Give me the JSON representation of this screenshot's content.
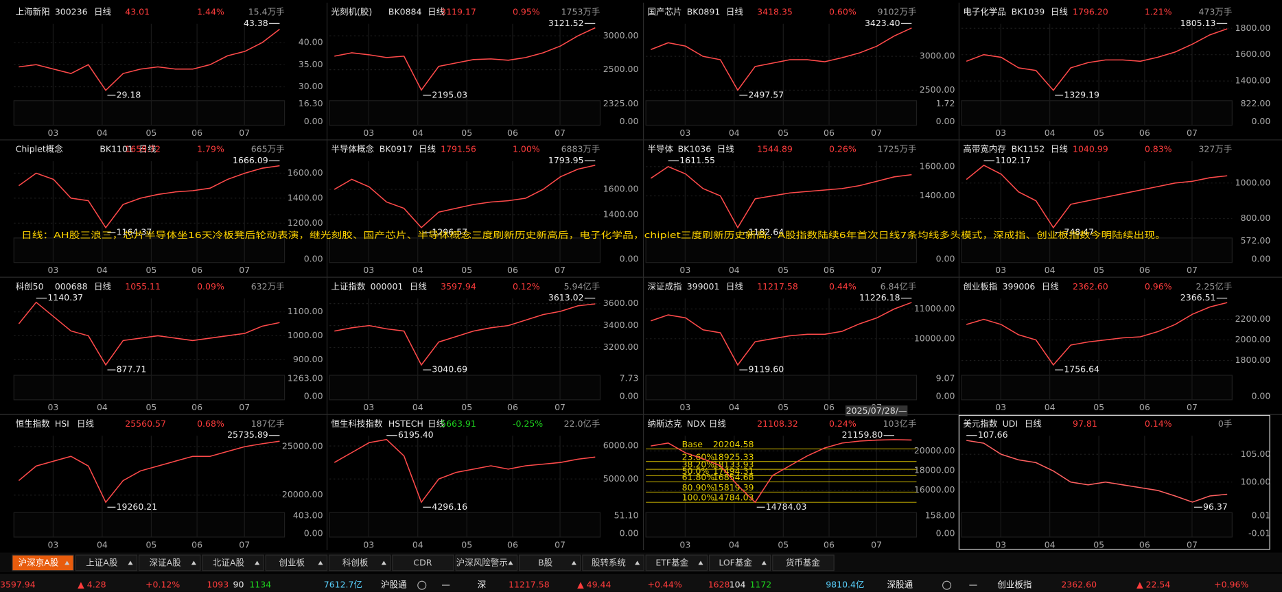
{
  "panels": [
    {
      "name": "上海新阳",
      "code": "300236",
      "period": "日线",
      "price": "43.01",
      "change": "1.44%",
      "volume_unit": "15.4万手",
      "yticks": [
        {
          "value": 40,
          "label": "40.00"
        },
        {
          "value": 35,
          "label": "35.00"
        },
        {
          "value": 30,
          "label": "30.00"
        }
      ],
      "vol_ticks": [
        "16.30",
        "0.00"
      ],
      "high": "43.38",
      "low": "29.18",
      "close": [
        34.5,
        35,
        34,
        33,
        35,
        29.2,
        33,
        34,
        34.5,
        34,
        34,
        35,
        37,
        38,
        40,
        43.01
      ]
    },
    {
      "name": "光刻机(胶)",
      "code": "BK0884",
      "period": "日线",
      "price": "3119.17",
      "change": "0.95%",
      "volume_unit": "1753万手",
      "yticks": [
        {
          "value": 3000,
          "label": "3000.00"
        },
        {
          "value": 2500,
          "label": "2500.00"
        }
      ],
      "vol_ticks": [
        "2325.00",
        "0.00"
      ],
      "high": "3121.52",
      "low": "2195.03",
      "close": [
        2700,
        2750,
        2720,
        2680,
        2700,
        2200,
        2550,
        2600,
        2650,
        2660,
        2640,
        2680,
        2750,
        2850,
        3000,
        3119.17
      ]
    },
    {
      "name": "国产芯片",
      "code": "BK0891",
      "period": "日线",
      "price": "3418.35",
      "change": "0.60%",
      "volume_unit": "9102万手",
      "yticks": [
        {
          "value": 3000,
          "label": "3000.00"
        },
        {
          "value": 2500,
          "label": "2500.00"
        }
      ],
      "vol_ticks": [
        "1.72",
        "0.00"
      ],
      "high": "3423.40",
      "low": "2497.57",
      "close": [
        3100,
        3200,
        3150,
        3000,
        2950,
        2500,
        2850,
        2900,
        2950,
        2950,
        2920,
        2980,
        3050,
        3150,
        3300,
        3418.35
      ]
    },
    {
      "name": "电子化学品",
      "code": "BK1039",
      "period": "日线",
      "price": "1796.20",
      "change": "1.21%",
      "volume_unit": "473万手",
      "yticks": [
        {
          "value": 1800,
          "label": "1800.00"
        },
        {
          "value": 1600,
          "label": "1600.00"
        },
        {
          "value": 1400,
          "label": "1400.00"
        }
      ],
      "vol_ticks": [
        "822.00",
        "0.00"
      ],
      "high": "1805.13",
      "low": "1329.19",
      "close": [
        1550,
        1600,
        1580,
        1500,
        1480,
        1330,
        1500,
        1540,
        1560,
        1560,
        1550,
        1580,
        1620,
        1680,
        1750,
        1796.2
      ]
    },
    {
      "name": "Chiplet概念",
      "code": "BK1101",
      "period": "日线",
      "price": "1659.72",
      "change": "1.79%",
      "volume_unit": "665万手",
      "yticks": [
        {
          "value": 1600,
          "label": "1600.00"
        },
        {
          "value": 1400,
          "label": "1400.00"
        },
        {
          "value": 1200,
          "label": "1200.00"
        }
      ],
      "vol_ticks": [
        "0.00"
      ],
      "high": "1666.09",
      "low": "1164.37",
      "close": [
        1500,
        1600,
        1550,
        1400,
        1380,
        1164,
        1350,
        1400,
        1430,
        1450,
        1460,
        1480,
        1550,
        1600,
        1640,
        1659.72
      ]
    },
    {
      "name": "半导体概念",
      "code": "BK0917",
      "period": "日线",
      "price": "1791.56",
      "change": "1.00%",
      "volume_unit": "6883万手",
      "yticks": [
        {
          "value": 1600,
          "label": "1600.00"
        },
        {
          "value": 1400,
          "label": "1400.00"
        }
      ],
      "vol_ticks": [
        "0.00"
      ],
      "high": "1793.95",
      "low": "1296.57",
      "close": [
        1600,
        1680,
        1620,
        1500,
        1450,
        1297,
        1420,
        1450,
        1480,
        1500,
        1510,
        1530,
        1600,
        1700,
        1760,
        1791.56
      ]
    },
    {
      "name": "半导体",
      "code": "BK1036",
      "period": "日线",
      "price": "1544.89",
      "change": "0.26%",
      "volume_unit": "1725万手",
      "yticks": [
        {
          "value": 1600,
          "label": "1600.00"
        },
        {
          "value": 1400,
          "label": "1400.00"
        }
      ],
      "vol_ticks": [
        "0.00"
      ],
      "high": "1611.55",
      "low": "1182.64",
      "close": [
        1520,
        1600,
        1550,
        1450,
        1400,
        1183,
        1380,
        1400,
        1420,
        1430,
        1440,
        1450,
        1470,
        1500,
        1530,
        1544.89
      ]
    },
    {
      "name": "高带宽内存",
      "code": "BK1152",
      "period": "日线",
      "price": "1040.99",
      "change": "0.83%",
      "volume_unit": "327万手",
      "yticks": [
        {
          "value": 1000,
          "label": "1000.00"
        },
        {
          "value": 800,
          "label": "800.00"
        }
      ],
      "vol_ticks": [
        "572.00",
        "0.00"
      ],
      "high": "1102.17",
      "low": "748.47",
      "close": [
        1020,
        1100,
        1050,
        950,
        900,
        748,
        880,
        900,
        920,
        940,
        960,
        980,
        1000,
        1010,
        1030,
        1040.99
      ]
    },
    {
      "name": "科创50",
      "code": "000688",
      "period": "日线",
      "price": "1055.11",
      "change": "0.09%",
      "volume_unit": "632万手",
      "yticks": [
        {
          "value": 1100,
          "label": "1100.00"
        },
        {
          "value": 1000,
          "label": "1000.00"
        },
        {
          "value": 900,
          "label": "900.00"
        }
      ],
      "vol_ticks": [
        "1263.00",
        "0.00"
      ],
      "high": "1140.37",
      "low": "877.71",
      "close": [
        1050,
        1140,
        1080,
        1020,
        1000,
        878,
        980,
        990,
        1000,
        990,
        980,
        990,
        1000,
        1010,
        1040,
        1055.11
      ]
    },
    {
      "name": "上证指数",
      "code": "000001",
      "period": "日线",
      "price": "3597.94",
      "change": "0.12%",
      "volume_unit": "5.94亿手",
      "yticks": [
        {
          "value": 3600,
          "label": "3600.00"
        },
        {
          "value": 3400,
          "label": "3400.00"
        },
        {
          "value": 3200,
          "label": "3200.00"
        }
      ],
      "vol_ticks": [
        "7.73",
        "0.00"
      ],
      "high": "3613.02",
      "low": "3040.69",
      "close": [
        3350,
        3380,
        3400,
        3370,
        3350,
        3041,
        3250,
        3300,
        3350,
        3380,
        3400,
        3450,
        3500,
        3530,
        3580,
        3597.94
      ]
    },
    {
      "name": "深证成指",
      "code": "399001",
      "period": "日线",
      "price": "11217.58",
      "change": "0.44%",
      "volume_unit": "6.84亿手",
      "yticks": [
        {
          "value": 11000,
          "label": "11000.00"
        },
        {
          "value": 10000,
          "label": "10000.00"
        }
      ],
      "vol_ticks": [
        "9.07",
        "0.00"
      ],
      "high": "11226.18",
      "low": "9119.60",
      "close": [
        10600,
        10800,
        10700,
        10300,
        10200,
        9120,
        9900,
        10000,
        10100,
        10150,
        10150,
        10250,
        10500,
        10700,
        11000,
        11217.58
      ]
    },
    {
      "name": "创业板指",
      "code": "399006",
      "period": "日线",
      "price": "2362.60",
      "change": "0.96%",
      "volume_unit": "2.25亿手",
      "yticks": [
        {
          "value": 2200,
          "label": "2200.00"
        },
        {
          "value": 2000,
          "label": "2000.00"
        },
        {
          "value": 1800,
          "label": "1800.00"
        }
      ],
      "vol_ticks": [
        "0.00"
      ],
      "high": "2366.51",
      "low": "1756.64",
      "close": [
        2150,
        2200,
        2150,
        2050,
        2000,
        1757,
        1950,
        1980,
        2000,
        2020,
        2030,
        2080,
        2150,
        2250,
        2320,
        2362.6
      ]
    },
    {
      "name": "恒生指数",
      "code": "HSI",
      "period": "日线",
      "price": "25560.57",
      "change": "0.68%",
      "volume_unit": "187亿手",
      "yticks": [
        {
          "value": 25000,
          "label": "25000.00"
        },
        {
          "value": 20000,
          "label": "20000.00"
        }
      ],
      "vol_ticks": [
        "403.00",
        "0.00"
      ],
      "high": "25735.89",
      "low": "19260.21",
      "close": [
        21500,
        23000,
        23500,
        24000,
        23000,
        19260,
        21500,
        22500,
        23000,
        23500,
        24000,
        24000,
        24500,
        25000,
        25300,
        25560.57
      ]
    },
    {
      "name": "恒生科技指数",
      "code": "HSTECH",
      "period": "日线",
      "price": "5663.91",
      "change": "-0.25%",
      "volume_unit": "22.0亿手",
      "yticks": [
        {
          "value": 6000,
          "label": "6000.00"
        },
        {
          "value": 5000,
          "label": "5000.00"
        }
      ],
      "vol_ticks": [
        "51.10",
        "0.00"
      ],
      "high": "6195.40",
      "low": "4296.16",
      "close": [
        5500,
        5800,
        6100,
        6195,
        5700,
        4296,
        5000,
        5200,
        5300,
        5400,
        5300,
        5400,
        5450,
        5500,
        5600,
        5663.91
      ]
    },
    {
      "name": "纳斯达克",
      "code": "NDX",
      "period": "日线",
      "price": "21108.32",
      "change": "0.24%",
      "volume_unit": "103亿手",
      "yticks": [
        {
          "value": 20000,
          "label": "20000.00"
        },
        {
          "value": 18000,
          "label": "18000.00"
        },
        {
          "value": 16000,
          "label": "16000.00"
        }
      ],
      "vol_ticks": [
        "158.00",
        "0.00"
      ],
      "high": "21159.80",
      "low": "14784.03",
      "close": [
        20500,
        20800,
        19800,
        19200,
        18500,
        16500,
        14784,
        17500,
        18500,
        19500,
        20300,
        20800,
        21000,
        21100,
        21150,
        21108.32
      ],
      "fib": [
        {
          "label": "Base",
          "value": 20204.58
        },
        {
          "label": "23.60%",
          "value": 18925.33
        },
        {
          "label": "38.20%",
          "value": 18133.93
        },
        {
          "label": "50.0%",
          "value": 17494.31
        },
        {
          "label": "61.80%",
          "value": 16854.68
        },
        {
          "label": "80.90%",
          "value": 15819.39
        },
        {
          "label": "100.0%",
          "value": 14784.03
        }
      ]
    },
    {
      "name": "美元指数",
      "code": "UDI",
      "period": "日线",
      "price": "97.81",
      "change": "0.14%",
      "volume_unit": "0手",
      "yticks": [
        {
          "value": 105,
          "label": "105.00"
        },
        {
          "value": 100,
          "label": "100.00"
        }
      ],
      "vol_ticks": [
        "0.01",
        "-0.01"
      ],
      "high": "107.66",
      "low": "96.37",
      "close": [
        107.5,
        107,
        105,
        104,
        103.5,
        102,
        100,
        99.5,
        100,
        99.5,
        99,
        98.5,
        97.5,
        96.4,
        97.5,
        97.81
      ]
    }
  ],
  "x_labels": [
    "03",
    "04",
    "05",
    "06",
    "07"
  ],
  "announcement": "日线：AH股三浪三，芯片半导体坐16天冷板凳后轮动表演，继光刻胶、国产芯片、半导体概念三度刷新历史新高后，电子化学品，chiplet三度刷新历史新高。A股指数陆续6年首次日线7条均线多头模式，深成指、创业板指数今明陆续出现。",
  "date_label": "2025/07/28/—",
  "tabs": [
    "沪深京A股",
    "上证A股",
    "深证A股",
    "北证A股",
    "创业板",
    "科创板",
    "CDR",
    "沪深风险警示",
    "B股",
    "股转系统",
    "ETF基金",
    "LOF基金",
    "货币基金"
  ],
  "status": [
    "3597.94",
    "▲ 4.28",
    "+0.12%",
    "1093",
    "90",
    "1134",
    "7612.7亿",
    "沪股通",
    "—",
    "深",
    "11217.58",
    "▲ 49.44",
    "+0.44%",
    "1628",
    "104",
    "1172",
    "9810.4亿",
    "深股通",
    "—",
    "创业板指",
    "2362.60",
    "▲ 22.54",
    "+0.96%"
  ]
}
